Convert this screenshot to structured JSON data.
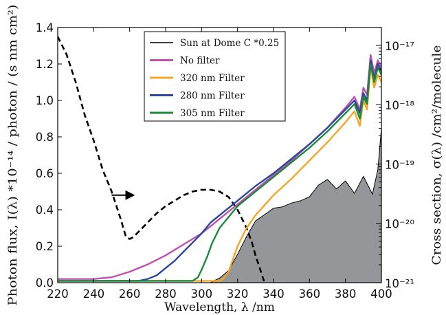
{
  "chart_data": {
    "type": "line",
    "x_axis": {
      "label": "Wavelength, λ /nm",
      "range": [
        220,
        400
      ],
      "ticks": [
        "220",
        "240",
        "260",
        "280",
        "300",
        "320",
        "340",
        "360",
        "380",
        "400"
      ],
      "tick_values": [
        220,
        240,
        260,
        280,
        300,
        320,
        340,
        360,
        380,
        400
      ]
    },
    "y_left": {
      "label": "Photon flux, I(λ) *10⁻¹⁴ / photon / (s nm cm²)",
      "range": [
        0,
        1.4
      ],
      "ticks": [
        "0.0",
        "0.2",
        "0.4",
        "0.6",
        "0.8",
        "1.0",
        "1.2",
        "1.4"
      ],
      "tick_values": [
        0,
        0.2,
        0.4,
        0.6,
        0.8,
        1.0,
        1.2,
        1.4
      ]
    },
    "y_right": {
      "label": "Cross section, σ(λ) /cm²/molecule",
      "scale": "log",
      "range": [
        1e-21,
        2e-17
      ],
      "ticks": [
        "10⁻¹⁷",
        "10⁻¹⁸",
        "10⁻¹⁹",
        "10⁻²⁰",
        "10⁻²¹"
      ],
      "tick_values": [
        1e-17,
        1e-18,
        1e-19,
        1e-20,
        1e-21
      ]
    },
    "legend": {
      "placement": "top-center",
      "entries": [
        {
          "label": "Sun at Dome C *0.25",
          "color": "#000000",
          "style": "solid-thin"
        },
        {
          "label": "No filter",
          "color": "#c050b0",
          "style": "solid"
        },
        {
          "label": "320 nm Filter",
          "color": "#f5a623",
          "style": "solid"
        },
        {
          "label": "280 nm Filter",
          "color": "#2a46a0",
          "style": "solid"
        },
        {
          "label": "305 nm Filter",
          "color": "#1a8a3a",
          "style": "solid"
        }
      ]
    },
    "series": [
      {
        "name": "Sun at Dome C *0.25",
        "axis": "left",
        "color": "#000000",
        "dash": "8,5",
        "x": [
          220,
          225,
          230,
          235,
          240,
          245,
          250,
          255,
          258,
          260,
          262,
          265,
          270,
          275,
          280,
          285,
          290,
          295,
          300,
          305,
          310,
          315,
          320,
          325,
          328,
          330,
          332,
          334,
          335
        ],
        "y": [
          1.35,
          1.25,
          1.1,
          0.92,
          0.78,
          0.62,
          0.5,
          0.35,
          0.25,
          0.24,
          0.25,
          0.28,
          0.33,
          0.38,
          0.42,
          0.45,
          0.48,
          0.5,
          0.51,
          0.51,
          0.5,
          0.47,
          0.4,
          0.3,
          0.22,
          0.15,
          0.09,
          0.03,
          0.0
        ]
      },
      {
        "name": "No filter",
        "axis": "left",
        "color": "#c050b0",
        "x": [
          220,
          225,
          230,
          240,
          250,
          260,
          270,
          280,
          290,
          300,
          310,
          320,
          330,
          340,
          350,
          360,
          370,
          380,
          385,
          388,
          390,
          392,
          394,
          396,
          398,
          400
        ],
        "y": [
          0.02,
          0.02,
          0.02,
          0.02,
          0.03,
          0.06,
          0.1,
          0.15,
          0.21,
          0.27,
          0.35,
          0.43,
          0.51,
          0.59,
          0.67,
          0.76,
          0.85,
          0.96,
          1.02,
          0.95,
          1.07,
          1.03,
          1.25,
          1.15,
          1.22,
          1.18
        ]
      },
      {
        "name": "320 nm Filter",
        "axis": "left",
        "color": "#f5a623",
        "x": [
          220,
          230,
          240,
          250,
          260,
          270,
          280,
          290,
          300,
          310,
          312,
          315,
          320,
          325,
          330,
          340,
          350,
          360,
          370,
          380,
          385,
          388,
          390,
          392,
          394,
          396,
          398,
          400
        ],
        "y": [
          0.01,
          0.01,
          0.01,
          0.01,
          0.01,
          0.01,
          0.01,
          0.01,
          0.01,
          0.01,
          0.02,
          0.06,
          0.2,
          0.3,
          0.37,
          0.48,
          0.57,
          0.67,
          0.77,
          0.88,
          0.94,
          0.86,
          1.0,
          0.95,
          1.18,
          1.07,
          1.14,
          1.1
        ]
      },
      {
        "name": "280 nm Filter",
        "axis": "left",
        "color": "#2a46a0",
        "x": [
          220,
          230,
          240,
          250,
          260,
          265,
          270,
          275,
          280,
          285,
          290,
          295,
          300,
          305,
          310,
          320,
          330,
          340,
          350,
          360,
          370,
          380,
          385,
          388,
          390,
          392,
          394,
          396,
          398,
          400
        ],
        "y": [
          0.01,
          0.01,
          0.01,
          0.01,
          0.01,
          0.01,
          0.02,
          0.04,
          0.08,
          0.12,
          0.17,
          0.22,
          0.27,
          0.33,
          0.37,
          0.45,
          0.53,
          0.6,
          0.68,
          0.76,
          0.85,
          0.95,
          1.0,
          0.93,
          1.04,
          1.0,
          1.22,
          1.12,
          1.2,
          1.16
        ]
      },
      {
        "name": "305 nm Filter",
        "axis": "left",
        "color": "#1a8a3a",
        "x": [
          220,
          230,
          240,
          250,
          260,
          270,
          280,
          290,
          295,
          298,
          300,
          303,
          306,
          310,
          315,
          320,
          330,
          340,
          350,
          360,
          370,
          380,
          385,
          388,
          390,
          392,
          394,
          396,
          398,
          400
        ],
        "y": [
          0.01,
          0.01,
          0.01,
          0.01,
          0.01,
          0.01,
          0.01,
          0.01,
          0.01,
          0.03,
          0.07,
          0.14,
          0.22,
          0.3,
          0.36,
          0.42,
          0.5,
          0.58,
          0.66,
          0.74,
          0.83,
          0.93,
          0.98,
          0.9,
          1.02,
          0.98,
          1.2,
          1.1,
          1.18,
          1.14
        ]
      },
      {
        "name": "Cross section",
        "axis": "right",
        "color": "#7a7b80",
        "fill": "#95969a",
        "x": [
          305,
          310,
          315,
          320,
          325,
          330,
          335,
          340,
          345,
          350,
          355,
          360,
          365,
          370,
          375,
          380,
          385,
          390,
          395,
          398,
          400
        ],
        "y": [
          1e-21,
          1.2e-21,
          1.6e-21,
          3e-21,
          6e-21,
          1.1e-20,
          1.4e-20,
          1.8e-20,
          1.9e-20,
          2.2e-20,
          2.4e-20,
          2.8e-20,
          4.4e-20,
          5.5e-20,
          3.8e-20,
          5.2e-20,
          3.2e-20,
          6.2e-20,
          3.1e-20,
          8e-20,
          4e-19
        ]
      }
    ],
    "annotation": {
      "type": "arrow",
      "direction": "right",
      "meaning": "dashed curve refers to right axis",
      "x_from": 250,
      "x_to": 263,
      "y": 0.48
    }
  }
}
